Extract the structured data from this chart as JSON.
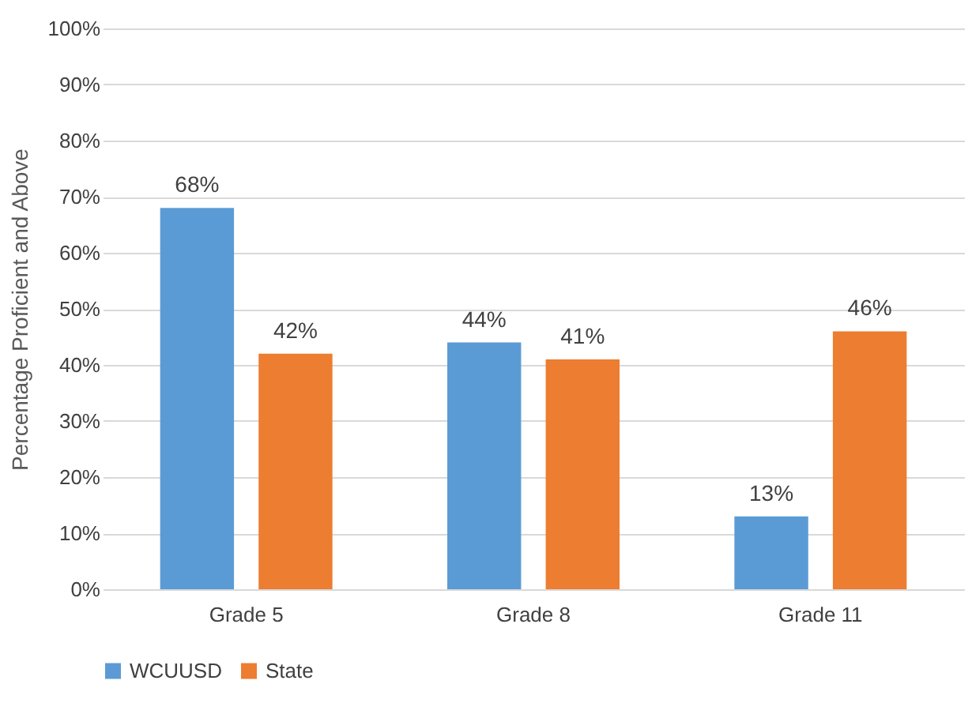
{
  "chart_data": {
    "type": "bar",
    "ylabel": "Percentage Proficient and Above",
    "categories": [
      "Grade 5",
      "Grade 8",
      "Grade 11"
    ],
    "series": [
      {
        "name": "WCUUSD",
        "color": "#5b9bd5",
        "values": [
          68,
          44,
          13
        ],
        "value_labels": [
          "68%",
          "44%",
          "13%"
        ]
      },
      {
        "name": "State",
        "color": "#ed7d31",
        "values": [
          42,
          41,
          46
        ],
        "value_labels": [
          "42%",
          "41%",
          "46%"
        ]
      }
    ],
    "ylim": [
      0,
      100
    ],
    "yticks": [
      {
        "value": 0,
        "label": "0%"
      },
      {
        "value": 10,
        "label": "10%"
      },
      {
        "value": 20,
        "label": "20%"
      },
      {
        "value": 30,
        "label": "30%"
      },
      {
        "value": 40,
        "label": "40%"
      },
      {
        "value": 50,
        "label": "50%"
      },
      {
        "value": 60,
        "label": "60%"
      },
      {
        "value": 70,
        "label": "70%"
      },
      {
        "value": 80,
        "label": "80%"
      },
      {
        "value": 90,
        "label": "90%"
      },
      {
        "value": 100,
        "label": "100%"
      }
    ],
    "grid": "y",
    "legend": "bottom"
  }
}
